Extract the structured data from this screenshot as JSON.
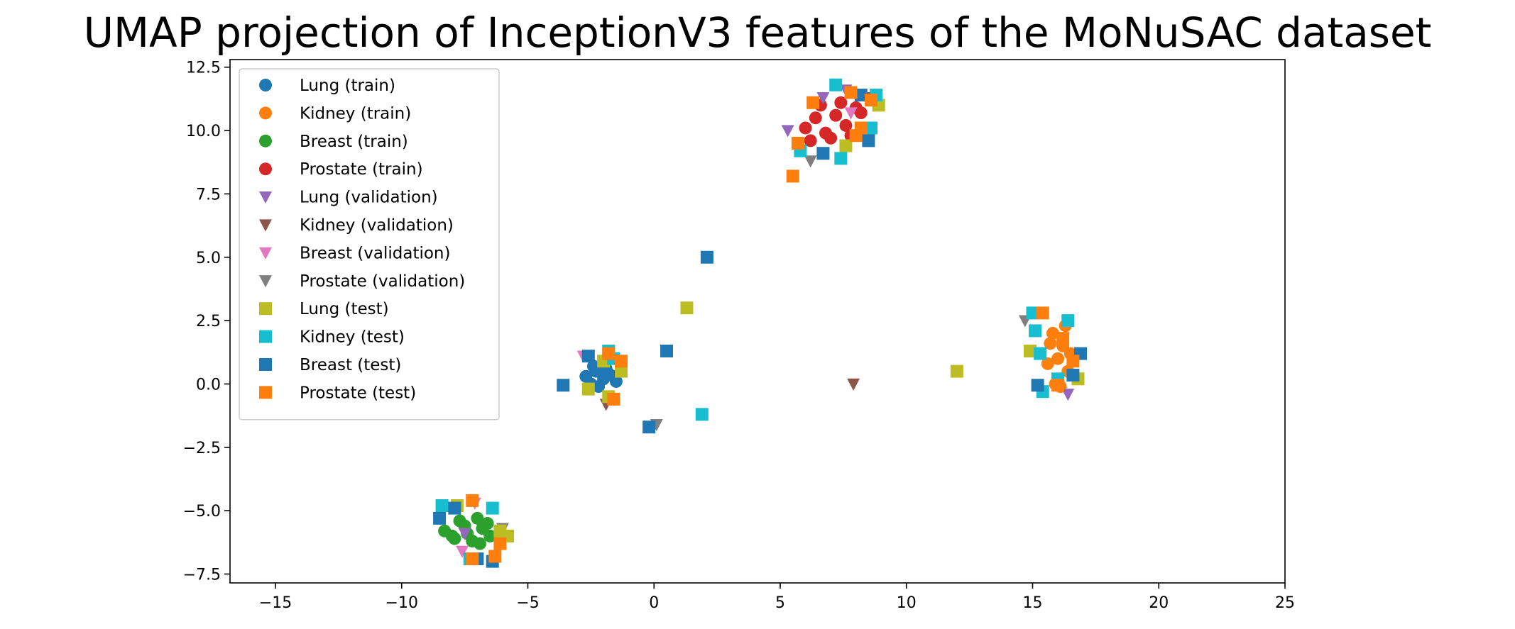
{
  "chart_data": {
    "type": "scatter",
    "title": "UMAP projection of InceptionV3 features of the MoNuSAC dataset",
    "xlabel": "",
    "ylabel": "",
    "xlim": [
      -16.8,
      25.0
    ],
    "ylim": [
      -7.85,
      12.8
    ],
    "xticks": [
      -15,
      -10,
      -5,
      0,
      5,
      10,
      15,
      20,
      25
    ],
    "xtick_labels": [
      "−15",
      "−10",
      "−5",
      "0",
      "5",
      "10",
      "15",
      "20",
      "25"
    ],
    "yticks": [
      -7.5,
      -5.0,
      -2.5,
      0.0,
      2.5,
      5.0,
      7.5,
      10.0,
      12.5
    ],
    "ytick_labels": [
      "−7.5",
      "−5.0",
      "−2.5",
      "0.0",
      "2.5",
      "5.0",
      "7.5",
      "10.0",
      "12.5"
    ],
    "grid": false,
    "legend_position": "top-left",
    "series": [
      {
        "name": "Lung (train)",
        "marker": "circle",
        "color": "#1f77b4",
        "points": [
          [
            -2.7,
            0.3
          ],
          [
            -2.3,
            0.5
          ],
          [
            -2.0,
            0.2
          ],
          [
            -1.8,
            0.4
          ],
          [
            -2.5,
            0.0
          ],
          [
            -1.5,
            0.1
          ],
          [
            -2.2,
            -0.1
          ],
          [
            -1.9,
            0.6
          ],
          [
            -2.4,
            0.7
          ],
          [
            -1.6,
            0.3
          ]
        ]
      },
      {
        "name": "Kidney (train)",
        "marker": "circle",
        "color": "#ff7f0e",
        "points": [
          [
            15.8,
            2.0
          ],
          [
            16.2,
            1.5
          ],
          [
            16.0,
            1.0
          ],
          [
            16.4,
            0.5
          ],
          [
            15.9,
            0.0
          ],
          [
            16.3,
            2.3
          ],
          [
            16.1,
            -0.1
          ],
          [
            15.7,
            1.6
          ],
          [
            16.5,
            1.2
          ],
          [
            15.6,
            0.8
          ]
        ]
      },
      {
        "name": "Breast (train)",
        "marker": "circle",
        "color": "#2ca02c",
        "points": [
          [
            -8.3,
            -5.8
          ],
          [
            -7.9,
            -6.1
          ],
          [
            -7.5,
            -5.6
          ],
          [
            -7.2,
            -6.2
          ],
          [
            -6.8,
            -5.7
          ],
          [
            -7.0,
            -5.3
          ],
          [
            -6.5,
            -6.0
          ],
          [
            -7.7,
            -5.4
          ],
          [
            -6.9,
            -6.3
          ],
          [
            -8.0,
            -6.0
          ],
          [
            -7.4,
            -5.9
          ],
          [
            -6.6,
            -5.5
          ]
        ]
      },
      {
        "name": "Prostate (train)",
        "marker": "circle",
        "color": "#d62728",
        "points": [
          [
            6.0,
            10.1
          ],
          [
            6.4,
            10.5
          ],
          [
            6.8,
            9.9
          ],
          [
            7.2,
            10.6
          ],
          [
            7.6,
            10.2
          ],
          [
            8.0,
            10.9
          ],
          [
            6.6,
            11.0
          ],
          [
            7.0,
            9.7
          ],
          [
            7.8,
            9.8
          ],
          [
            6.2,
            9.6
          ],
          [
            8.2,
            10.7
          ],
          [
            7.4,
            11.1
          ]
        ]
      },
      {
        "name": "Lung (validation)",
        "marker": "triangle-down",
        "color": "#9467bd",
        "points": [
          [
            5.3,
            10.0
          ],
          [
            6.7,
            11.3
          ],
          [
            7.6,
            11.6
          ],
          [
            16.4,
            -0.4
          ],
          [
            -7.5,
            -5.9
          ]
        ]
      },
      {
        "name": "Kidney (validation)",
        "marker": "triangle-down",
        "color": "#8c564b",
        "points": [
          [
            7.9,
            0.0
          ],
          [
            -1.9,
            -0.8
          ],
          [
            8.4,
            11.3
          ]
        ]
      },
      {
        "name": "Breast (validation)",
        "marker": "triangle-down",
        "color": "#e377c2",
        "points": [
          [
            -2.8,
            1.1
          ],
          [
            7.8,
            10.7
          ],
          [
            -7.1,
            -4.7
          ],
          [
            -7.6,
            -6.6
          ]
        ]
      },
      {
        "name": "Prostate (validation)",
        "marker": "triangle-down",
        "color": "#7f7f7f",
        "points": [
          [
            0.1,
            -1.6
          ],
          [
            14.7,
            2.5
          ],
          [
            6.2,
            8.8
          ],
          [
            -6.0,
            -5.7
          ]
        ]
      },
      {
        "name": "Lung (test)",
        "marker": "square",
        "color": "#bcbd22",
        "points": [
          [
            1.3,
            3.0
          ],
          [
            12.0,
            0.5
          ],
          [
            -1.3,
            0.5
          ],
          [
            -2.6,
            -0.2
          ],
          [
            14.9,
            1.3
          ],
          [
            16.8,
            0.2
          ],
          [
            7.6,
            9.4
          ],
          [
            8.9,
            11.0
          ],
          [
            -7.8,
            -4.8
          ],
          [
            -6.1,
            -5.8
          ],
          [
            -5.8,
            -6.0
          ],
          [
            -1.8,
            -0.5
          ],
          [
            -2.0,
            0.9
          ]
        ]
      },
      {
        "name": "Kidney (test)",
        "marker": "square",
        "color": "#17becf",
        "points": [
          [
            1.9,
            -1.2
          ],
          [
            -1.8,
            1.3
          ],
          [
            15.0,
            2.8
          ],
          [
            15.1,
            2.1
          ],
          [
            15.3,
            1.2
          ],
          [
            16.4,
            2.5
          ],
          [
            15.4,
            -0.3
          ],
          [
            16.0,
            0.2
          ],
          [
            7.2,
            11.8
          ],
          [
            8.8,
            11.4
          ],
          [
            5.8,
            9.2
          ],
          [
            7.4,
            8.9
          ],
          [
            8.6,
            10.1
          ],
          [
            -8.4,
            -4.8
          ],
          [
            -6.4,
            -4.9
          ],
          [
            -7.3,
            -6.9
          ],
          [
            -1.6,
            1.0
          ]
        ]
      },
      {
        "name": "Breast (test)",
        "marker": "square",
        "color": "#1f77b4",
        "points": [
          [
            2.1,
            5.0
          ],
          [
            0.5,
            1.3
          ],
          [
            -0.2,
            -1.7
          ],
          [
            -3.6,
            -0.05
          ],
          [
            -2.6,
            1.1
          ],
          [
            15.2,
            -0.05
          ],
          [
            16.6,
            0.35
          ],
          [
            16.9,
            1.2
          ],
          [
            8.5,
            9.6
          ],
          [
            6.7,
            9.1
          ],
          [
            8.2,
            11.4
          ],
          [
            -8.5,
            -5.3
          ],
          [
            -7.9,
            -4.9
          ],
          [
            -6.4,
            -7.0
          ],
          [
            -7.0,
            -6.9
          ]
        ]
      },
      {
        "name": "Prostate (test)",
        "marker": "square",
        "color": "#ff7f0e",
        "points": [
          [
            5.5,
            8.2
          ],
          [
            5.7,
            9.5
          ],
          [
            6.3,
            11.1
          ],
          [
            7.8,
            11.5
          ],
          [
            8.2,
            10.1
          ],
          [
            8.0,
            9.8
          ],
          [
            8.6,
            11.2
          ],
          [
            -1.8,
            1.2
          ],
          [
            -1.6,
            -0.6
          ],
          [
            -1.3,
            0.9
          ],
          [
            15.4,
            2.8
          ],
          [
            16.0,
            -0.05
          ],
          [
            16.6,
            0.9
          ],
          [
            16.2,
            1.8
          ],
          [
            -7.2,
            -4.6
          ],
          [
            -7.2,
            -6.9
          ],
          [
            -6.3,
            -6.8
          ],
          [
            -6.1,
            -6.3
          ]
        ]
      }
    ]
  }
}
